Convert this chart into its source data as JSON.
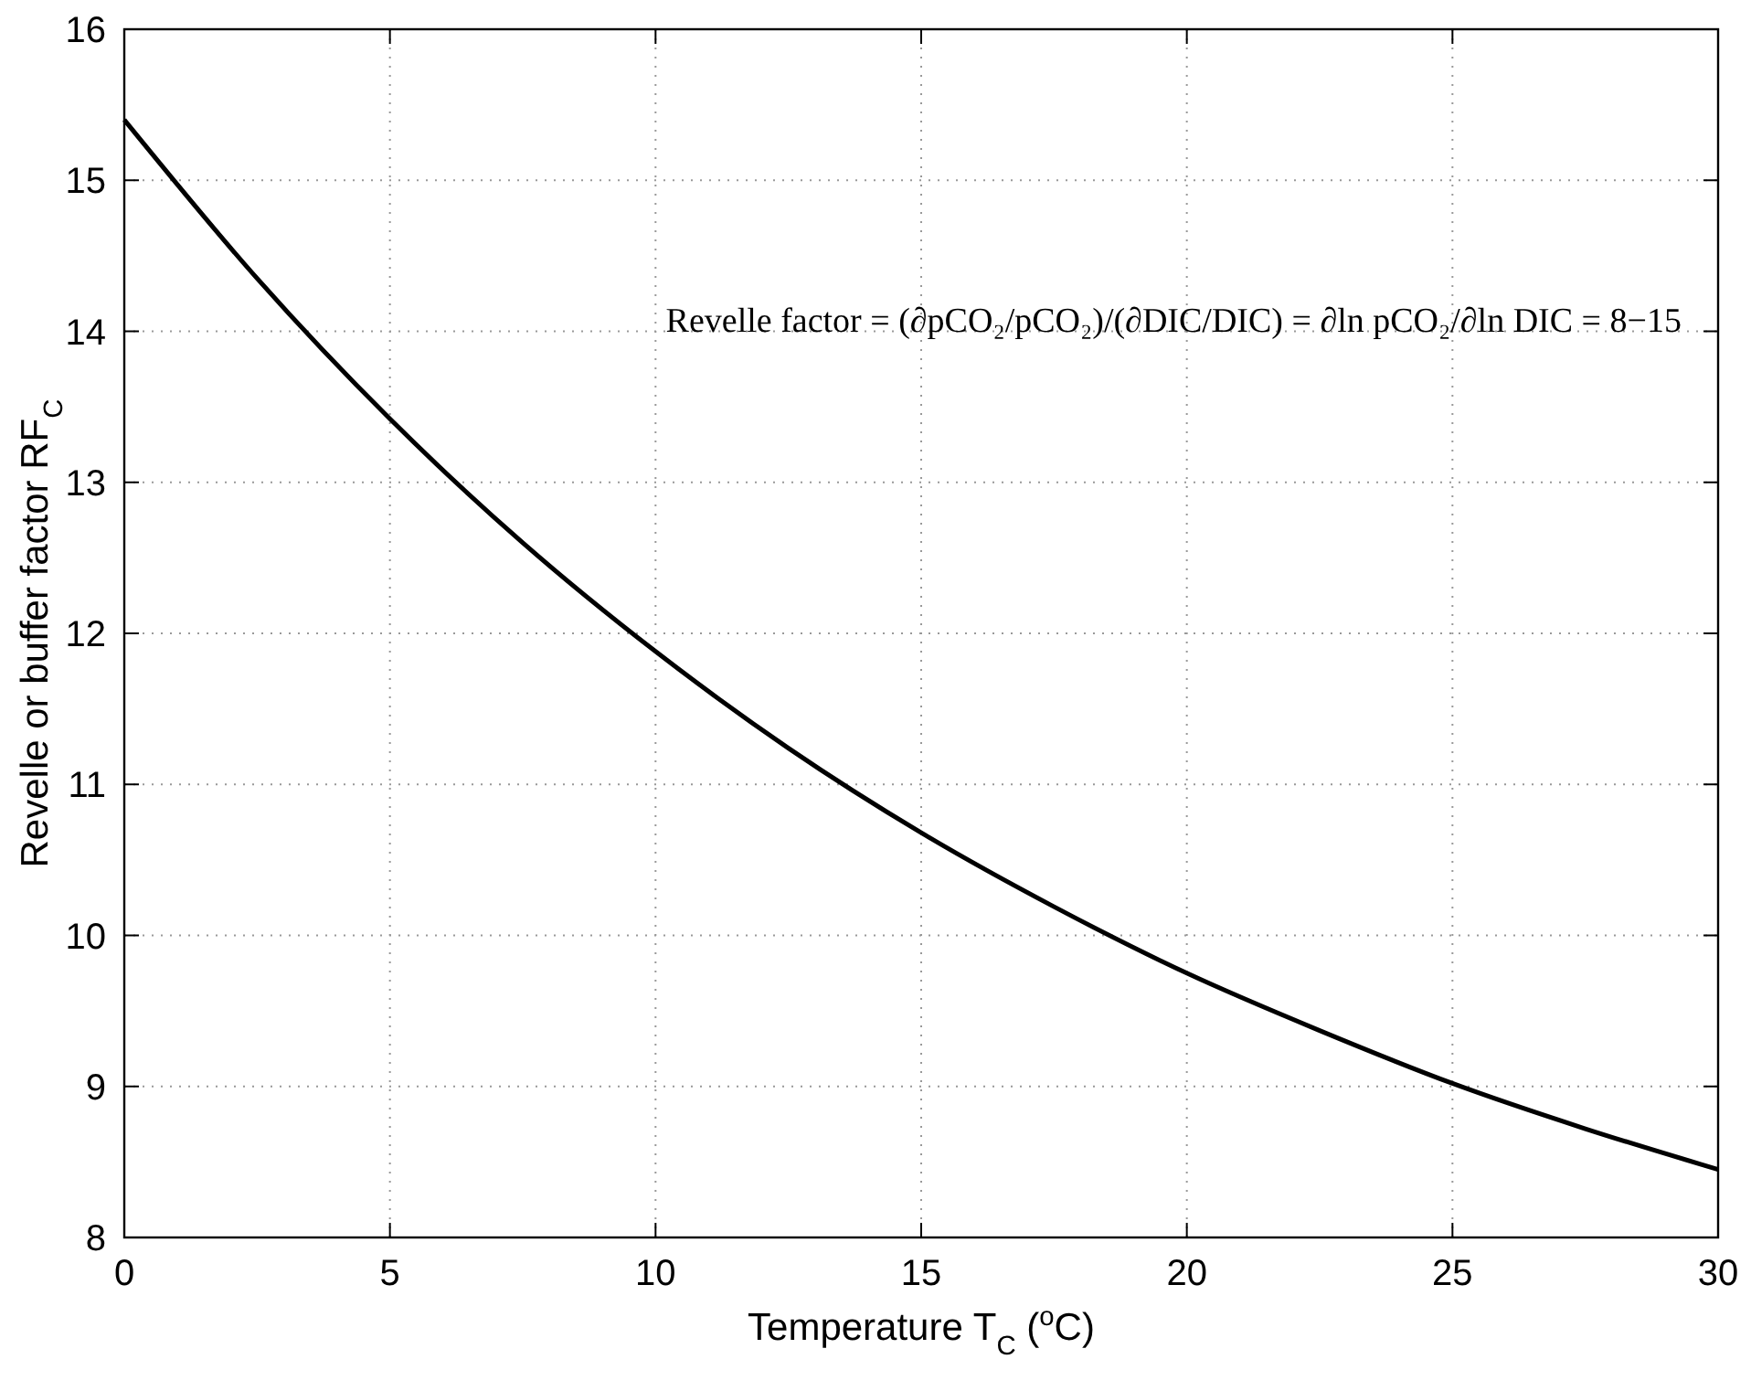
{
  "chart_data": {
    "type": "line",
    "xlabel": "Temperature T$_{C}$ ($^{o}$C)",
    "ylabel": "Revelle or buffer factor RF$_{C}$",
    "annotations": [
      "Revelle factor = (∂pCO₂/pCO₂)/(∂DIC/DIC) = ∂ln pCO₂/∂ln DIC = 8−15"
    ],
    "x": [
      0,
      2.5,
      5,
      7.5,
      10,
      12.5,
      15,
      17.5,
      20,
      22.5,
      25,
      27.5,
      30
    ],
    "series": [
      {
        "color": "#000000",
        "values": [
          15.4,
          14.35,
          13.42,
          12.6,
          11.88,
          11.24,
          10.68,
          10.19,
          9.75,
          9.37,
          9.02,
          8.72,
          8.45
        ]
      }
    ],
    "xlim": [
      0,
      30
    ],
    "xticks": [
      0,
      5,
      10,
      15,
      20,
      25,
      30
    ],
    "ylim": [
      8,
      16
    ],
    "yticks": [
      8,
      9,
      10,
      11,
      12,
      13,
      14,
      15,
      16
    ],
    "grid": true,
    "line_style": "solid",
    "marker": "none"
  }
}
